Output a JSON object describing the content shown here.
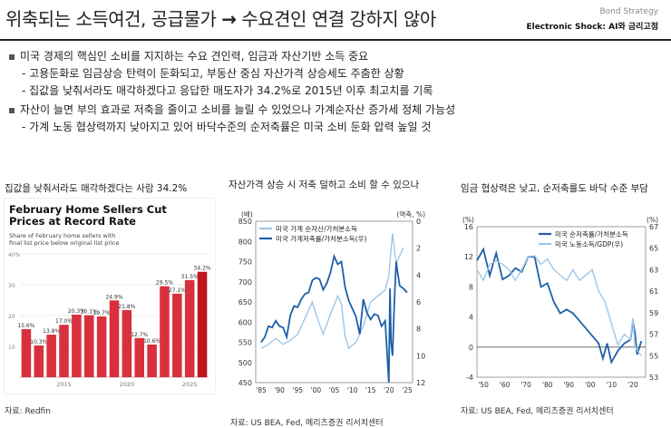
{
  "header": {
    "title": "위축되는 소득여건, 공급물가",
    "arrow": "→",
    "title_rest": "수요견인 연결 강하지 않아",
    "tag_top": "Bond Strategy",
    "tag_bottom": "Electronic Shock: AI와 금리고점"
  },
  "bullets": [
    "미국 경제의 핵심인 소비를 지지하는 수요 견인력, 임금과 자산기반 소득 중요",
    "- 고용둔화로 임금상승 탄력이 둔화되고, 부동산 중심 자산가격 상승세도 주춤한 상황",
    "- 집값을 낮춰서라도 매각하겠다고 응답한 매도자가 34.2%로 2015년 이후 최고치를 기록",
    "자산이 늘면 부의 효과로 저축을 줄이고 소비를 늘릴 수 있었으나 가계순자산 증가세 정체 가능성",
    "- 가계 노동 협상력까지 낮아지고 있어 바닥수준의 순저축률은 미국 소비 둔화 압력 높일 것"
  ],
  "charts": [
    {
      "panel_title": "집값을 낮춰서라도 매각하겠다는 사람 34.2%",
      "source": "자료: Redfin",
      "chart_data": {
        "type": "bar",
        "title": "February Home Sellers Cut Prices at Record Rate",
        "subtitle": "Share of February home sellers with final list price below original list price",
        "categories": [
          "2012",
          "2013",
          "2014",
          "2015",
          "2016",
          "2017",
          "2018",
          "2019",
          "2020",
          "2021",
          "2022",
          "2023",
          "2024",
          "2025",
          "2026"
        ],
        "values": [
          15.6,
          10.3,
          13.8,
          17.0,
          20.3,
          20.1,
          19.7,
          24.9,
          21.8,
          12.7,
          10.6,
          29.5,
          27.1,
          31.5,
          34.2
        ],
        "labels": [
          "15.6%",
          "10.3%",
          "13.8%",
          "17.0%",
          "20.3%",
          "20.1%",
          "19.7%",
          "24.9%",
          "21.8%",
          "12.7%",
          "10.6%",
          "29.5%",
          "27.1%",
          "31.5%",
          "34.2%"
        ],
        "x_ticks": [
          "2015",
          "2020",
          "2025"
        ],
        "y_ticks": [
          "10",
          "20",
          "30",
          "40%"
        ],
        "ylim": [
          0,
          40
        ],
        "colors": {
          "normal": "#d9303d",
          "latest": "#c0141e"
        }
      }
    },
    {
      "panel_title": "자산가격 상승 시 저축 덜하고 소비 할 수 있으나",
      "source": "자료: US BEA, Fed, 메리츠증권 리서치센터",
      "chart_data": {
        "type": "line",
        "left_unit": "(배)",
        "right_unit": "(역축, %)",
        "x_ticks": [
          "'85",
          "'90",
          "'95",
          "'00",
          "'05",
          "'10",
          "'15",
          "'20",
          "'25"
        ],
        "left_ticks": [
          "850",
          "800",
          "750",
          "700",
          "650",
          "600",
          "550",
          "500",
          "450"
        ],
        "right_ticks": [
          "0",
          "2",
          "4",
          "6",
          "8",
          "10",
          "12"
        ],
        "ylim_left": [
          450,
          850
        ],
        "ylim_right": [
          0,
          12
        ],
        "series": [
          {
            "name": "미국 가계 순자산/가처분소득",
            "color": "#9fc6e8",
            "x": [
              1985,
              1987,
              1989,
              1991,
              1993,
              1995,
              1997,
              1999,
              2000,
              2002,
              2004,
              2006,
              2007,
              2008,
              2009,
              2011,
              2013,
              2015,
              2017,
              2019,
              2020,
              2021,
              2022,
              2023,
              2024
            ],
            "y": [
              535,
              545,
              560,
              545,
              555,
              570,
              610,
              650,
              620,
              570,
              620,
              665,
              645,
              565,
              535,
              550,
              590,
              650,
              665,
              680,
              715,
              820,
              745,
              765,
              785
            ]
          },
          {
            "name": "미국 가계저축률/가처분소득(우)",
            "color": "#1f5fa8",
            "x": [
              1985,
              1986,
              1987,
              1988,
              1989,
              1990,
              1991,
              1992,
              1993,
              1994,
              1995,
              1996,
              1997,
              1998,
              1999,
              2000,
              2001,
              2002,
              2003,
              2004,
              2005,
              2006,
              2007,
              2008,
              2009,
              2010,
              2011,
              2012,
              2013,
              2014,
              2015,
              2016,
              2017,
              2018,
              2019,
              2020,
              2020.3,
              2020.6,
              2021,
              2021.5,
              2022,
              2022.5,
              2023,
              2024,
              2025
            ],
            "y": [
              9.0,
              8.6,
              7.8,
              7.9,
              7.4,
              7.8,
              7.9,
              8.6,
              7.0,
              6.3,
              6.4,
              5.8,
              5.4,
              5.3,
              4.4,
              4.2,
              4.3,
              5.1,
              4.6,
              3.8,
              2.6,
              3.2,
              3.0,
              4.9,
              5.9,
              6.5,
              7.1,
              8.4,
              5.8,
              6.8,
              7.3,
              6.9,
              7.0,
              7.8,
              7.4,
              12.0,
              5.0,
              9.0,
              10.0,
              6.0,
              3.0,
              4.0,
              4.8,
              5.0,
              5.3
            ]
          }
        ]
      }
    },
    {
      "panel_title": "임금 협상력은 낮고, 순저축률도 바닥 수준 부담",
      "source": "자료: US BEA, Fed, 메리츠증권 리서치센터",
      "chart_data": {
        "type": "line",
        "left_unit": "(%)",
        "right_unit": "(%)",
        "x_ticks": [
          "'50",
          "'60",
          "'70",
          "'80",
          "'90",
          "'00",
          "'10",
          "'20"
        ],
        "left_ticks": [
          "16",
          "12",
          "8",
          "4",
          "0",
          "-4"
        ],
        "right_ticks": [
          "67",
          "65",
          "63",
          "61",
          "59",
          "57",
          "55",
          "53"
        ],
        "ylim_left": [
          -4,
          16
        ],
        "ylim_right": [
          53,
          67
        ],
        "series": [
          {
            "name": "미국 순저축률/가처분소득",
            "color": "#1f5fa8",
            "x": [
              1947,
              1950,
              1953,
              1956,
              1959,
              1962,
              1965,
              1968,
              1971,
              1974,
              1977,
              1980,
              1983,
              1986,
              1989,
              1992,
              1995,
              1998,
              2001,
              2004,
              2006,
              2008,
              2010,
              2013,
              2016,
              2019,
              2020,
              2021,
              2022,
              2024
            ],
            "y": [
              11.5,
              13.0,
              9.5,
              12.5,
              9.0,
              9.5,
              10.5,
              10.0,
              12.0,
              12.0,
              8.0,
              8.5,
              6.0,
              4.5,
              5.0,
              4.5,
              3.5,
              2.5,
              1.5,
              0.5,
              -1.5,
              0.5,
              -2.0,
              -0.5,
              0.5,
              1.0,
              3.5,
              2.0,
              -1.0,
              0.8
            ]
          },
          {
            "name": "미국 노동소득/GDP(우)",
            "color": "#9fc6e8",
            "x": [
              1947,
              1950,
              1953,
              1956,
              1959,
              1962,
              1965,
              1968,
              1971,
              1974,
              1977,
              1980,
              1983,
              1986,
              1989,
              1992,
              1995,
              1998,
              2001,
              2004,
              2007,
              2010,
              2013,
              2016,
              2019,
              2020,
              2021,
              2022,
              2024
            ],
            "y": [
              63.0,
              62.0,
              63.5,
              63.8,
              63.5,
              63.0,
              62.0,
              63.0,
              64.2,
              64.3,
              63.5,
              64.0,
              63.0,
              62.5,
              62.0,
              63.0,
              62.0,
              62.5,
              63.0,
              61.0,
              60.0,
              58.0,
              56.0,
              57.0,
              56.5,
              58.5,
              56.0,
              55.5,
              55.0
            ]
          }
        ]
      }
    }
  ]
}
